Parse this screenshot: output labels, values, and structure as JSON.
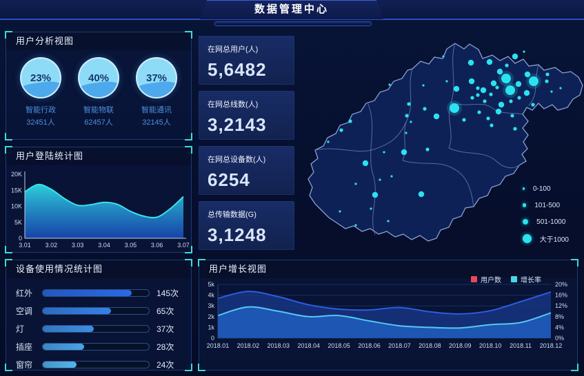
{
  "header": {
    "title": "数据管理中心"
  },
  "panels": {
    "user_analysis": {
      "title": "用户分析视图"
    },
    "login_stats": {
      "title": "用户登陆统计图"
    },
    "device_usage": {
      "title": "设备使用情况统计图"
    },
    "user_growth": {
      "title": "用户增长视图"
    }
  },
  "stats": [
    {
      "label": "在网总用户(人)",
      "value": "5,6482"
    },
    {
      "label": "在网总线数(人)",
      "value": "3,2143"
    },
    {
      "label": "在网总设备数(人)",
      "value": "6254"
    },
    {
      "label": "总传输数据(G)",
      "value": "3,1248"
    }
  ],
  "chart_data": [
    {
      "id": "user-gauges",
      "type": "pie",
      "items": [
        {
          "percent": "23%",
          "label": "智能行政",
          "count": "32451人"
        },
        {
          "percent": "40%",
          "label": "智能物联",
          "count": "62457人"
        },
        {
          "percent": "37%",
          "label": "智能通讯",
          "count": "32145人"
        }
      ]
    },
    {
      "id": "login-area",
      "type": "area",
      "title": "用户登陆统计图",
      "x_labels": [
        "3.01",
        "3.02",
        "3.03",
        "3.04",
        "3.05",
        "3.06",
        "3.07"
      ],
      "y_ticks": [
        "0",
        "5K",
        "10K",
        "15K",
        "20K"
      ],
      "ylim": [
        0,
        20
      ],
      "values_k": [
        14.5,
        16.8,
        15.3,
        12.4,
        10.3,
        10.5,
        11.2,
        10.6,
        8.4,
        6.9,
        6.6,
        9.2,
        13.0
      ],
      "line_color": "#38e4ec",
      "fill_top": "#2fd8e2",
      "fill_bottom": "#1b50c4"
    },
    {
      "id": "device-bars",
      "type": "bar",
      "title": "设备使用情况统计图",
      "categories": [
        "红外",
        "空调",
        "灯",
        "插座",
        "窗帘"
      ],
      "values": [
        145,
        65,
        37,
        28,
        24
      ],
      "value_labels": [
        "145次",
        "65次",
        "37次",
        "28次",
        "24次"
      ],
      "bar_pcts": [
        84,
        64,
        48,
        39,
        32
      ],
      "bar_colors": [
        "#2a6ae4",
        "#3581e6",
        "#3d8fe2",
        "#49a3e8",
        "#54b5ec"
      ]
    },
    {
      "id": "growth-area",
      "type": "area",
      "title": "用户增长视图",
      "x_labels": [
        "2018.01",
        "2018.02",
        "2018.03",
        "2018.04",
        "2018.05",
        "2018.06",
        "2018.07",
        "2018.08",
        "2018.09",
        "2018.10",
        "2018.11",
        "2018.12"
      ],
      "y_ticks_left": [
        "0",
        "1k",
        "2k",
        "3k",
        "4k",
        "5k"
      ],
      "y_ticks_right": [
        "0%",
        "4%",
        "8%",
        "12%",
        "16%",
        "20%"
      ],
      "ylim_left": [
        0,
        5
      ],
      "ylim_right": [
        0,
        20
      ],
      "series": [
        {
          "name": "用户数",
          "color": "#2d5ce0",
          "fill": "#16337d",
          "values_k": [
            3.7,
            4.35,
            3.85,
            3.1,
            2.7,
            2.62,
            2.85,
            2.45,
            2.25,
            2.55,
            3.4,
            4.3
          ]
        },
        {
          "name": "增长率",
          "color": "#55c8f2",
          "fill": "#1d59b6",
          "values_pct": [
            8.4,
            11.6,
            10.0,
            8.0,
            8.4,
            6.4,
            4.6,
            4.0,
            3.8,
            5.0,
            5.8,
            9.4
          ]
        }
      ],
      "legend": [
        {
          "label": "用户数",
          "color": "#e8495a"
        },
        {
          "label": "增长率",
          "color": "#49d6e8"
        }
      ]
    },
    {
      "id": "map-scatter",
      "type": "scatter",
      "dot_color": "#2ae2f0",
      "legend": [
        {
          "label": "0-100",
          "r": 1.6
        },
        {
          "label": "101-500",
          "r": 2.8
        },
        {
          "label": "501-1000",
          "r": 4.2
        },
        {
          "label": "大于1000",
          "r": 6.5
        }
      ],
      "dots": [
        [
          304,
          69,
          3
        ],
        [
          310,
          86,
          3
        ],
        [
          344,
          73,
          3
        ],
        [
          229,
          112,
          3
        ],
        [
          317,
          37,
          2
        ],
        [
          280,
          45,
          2
        ],
        [
          253,
          46,
          2
        ],
        [
          295,
          59,
          2
        ],
        [
          335,
          63,
          2
        ],
        [
          364,
          63,
          1
        ],
        [
          254,
          73,
          2
        ],
        [
          263,
          83,
          1
        ],
        [
          271,
          86,
          2
        ],
        [
          286,
          76,
          2
        ],
        [
          291,
          82,
          1
        ],
        [
          322,
          77,
          2
        ],
        [
          334,
          90,
          2
        ],
        [
          323,
          97,
          1
        ],
        [
          311,
          102,
          1
        ],
        [
          297,
          107,
          2
        ],
        [
          282,
          92,
          1
        ],
        [
          273,
          102,
          1
        ],
        [
          263,
          93,
          1
        ],
        [
          255,
          97,
          1
        ],
        [
          293,
          117,
          2
        ],
        [
          313,
          123,
          1
        ],
        [
          278,
          127,
          1
        ],
        [
          265,
          118,
          1
        ],
        [
          243,
          129,
          1
        ],
        [
          283,
          137,
          1
        ],
        [
          317,
          142,
          1
        ],
        [
          213,
          37,
          0
        ],
        [
          363,
          73,
          1
        ],
        [
          383,
          83,
          0
        ],
        [
          218,
          73,
          0
        ],
        [
          232,
          84,
          2
        ],
        [
          184,
          79,
          0
        ],
        [
          135,
          78,
          0
        ],
        [
          160,
          123,
          1
        ],
        [
          203,
          124,
          2
        ],
        [
          166,
          132,
          0
        ],
        [
          186,
          113,
          1
        ],
        [
          163,
          106,
          1
        ],
        [
          159,
          148,
          0
        ],
        [
          156,
          176,
          2
        ],
        [
          190,
          172,
          1
        ],
        [
          181,
          237,
          2
        ],
        [
          100,
          192,
          2
        ],
        [
          127,
          176,
          0
        ],
        [
          138,
          211,
          0
        ],
        [
          121,
          216,
          0
        ],
        [
          86,
          222,
          0
        ],
        [
          63,
          262,
          0
        ],
        [
          86,
          282,
          0
        ],
        [
          133,
          276,
          0
        ],
        [
          65,
          144,
          1
        ],
        [
          46,
          161,
          0
        ],
        [
          78,
          131,
          1
        ],
        [
          114,
          238,
          2
        ],
        [
          108,
          258,
          0
        ],
        [
          370,
          88,
          0
        ],
        [
          343,
          107,
          1
        ],
        [
          305,
          50,
          1
        ],
        [
          330,
          30,
          0
        ]
      ]
    }
  ]
}
